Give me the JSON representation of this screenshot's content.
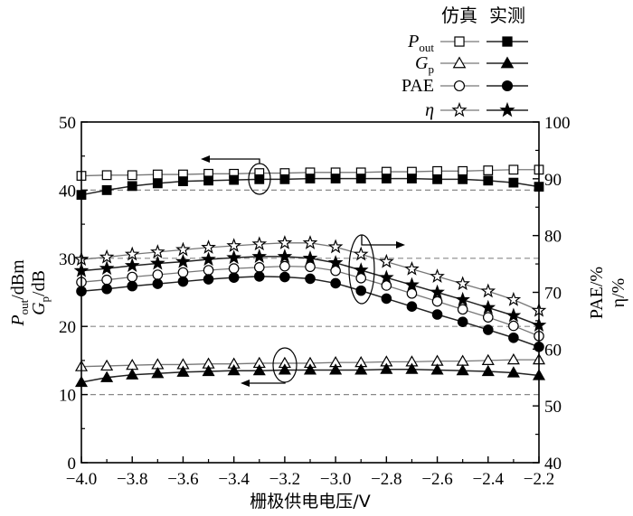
{
  "chart_data": {
    "type": "line",
    "xlabel": "栅极供电电压/V",
    "x_ticks": [
      "−4.0",
      "−3.8",
      "−3.6",
      "−3.4",
      "−3.2",
      "−3.0",
      "−2.8",
      "−2.6",
      "−2.4",
      "−2.2"
    ],
    "xlim": [
      -4.0,
      -2.2
    ],
    "left_axis": {
      "label_parts": [
        {
          "main": "P",
          "sub": "out",
          "rest": "/dBm"
        },
        {
          "main": "G",
          "sub": "p",
          "rest": "/dB"
        }
      ],
      "ylim": [
        0,
        50
      ],
      "ticks": [
        "0",
        "10",
        "20",
        "30",
        "40",
        "50"
      ]
    },
    "right_axis": {
      "label_lines": [
        "PAE/%",
        "η/%"
      ],
      "ylim": [
        40,
        100
      ],
      "ticks": [
        "40",
        "50",
        "60",
        "70",
        "80",
        "90",
        "100"
      ]
    },
    "legend": {
      "headers": [
        "仿真",
        "实测"
      ],
      "entries": [
        {
          "label_main": "P",
          "label_sub": "out",
          "marker": "square"
        },
        {
          "label_main": "G",
          "label_sub": "p",
          "marker": "triangle"
        },
        {
          "label_main": "PAE",
          "label_sub": "",
          "marker": "circle"
        },
        {
          "label_main": "η",
          "label_sub": "",
          "marker": "star"
        }
      ]
    },
    "x": [
      -4.0,
      -3.9,
      -3.8,
      -3.7,
      -3.6,
      -3.5,
      -3.4,
      -3.3,
      -3.2,
      -3.1,
      -3.0,
      -2.9,
      -2.8,
      -2.7,
      -2.6,
      -2.5,
      -2.4,
      -2.3,
      -2.2
    ],
    "series": [
      {
        "quantity": "Pout",
        "kind": "仿真",
        "axis": "left",
        "marker": "square",
        "filled": false,
        "values": [
          42.1,
          42.2,
          42.2,
          42.3,
          42.3,
          42.4,
          42.4,
          42.5,
          42.5,
          42.6,
          42.6,
          42.6,
          42.7,
          42.7,
          42.8,
          42.8,
          42.9,
          43.0,
          43.0
        ]
      },
      {
        "quantity": "Pout",
        "kind": "实测",
        "axis": "left",
        "marker": "square",
        "filled": true,
        "values": [
          39.3,
          40.0,
          40.6,
          41.0,
          41.3,
          41.4,
          41.5,
          41.6,
          41.6,
          41.7,
          41.7,
          41.7,
          41.7,
          41.7,
          41.6,
          41.6,
          41.4,
          41.1,
          40.5
        ]
      },
      {
        "quantity": "Gp",
        "kind": "仿真",
        "axis": "left",
        "marker": "triangle",
        "filled": false,
        "values": [
          14.1,
          14.2,
          14.3,
          14.4,
          14.4,
          14.5,
          14.5,
          14.6,
          14.6,
          14.6,
          14.7,
          14.7,
          14.8,
          14.8,
          14.9,
          14.9,
          15.0,
          15.1,
          15.1
        ]
      },
      {
        "quantity": "Gp",
        "kind": "实测",
        "axis": "left",
        "marker": "triangle",
        "filled": true,
        "values": [
          11.8,
          12.5,
          12.9,
          13.1,
          13.3,
          13.4,
          13.5,
          13.5,
          13.6,
          13.6,
          13.6,
          13.6,
          13.7,
          13.7,
          13.6,
          13.5,
          13.4,
          13.2,
          12.8
        ]
      },
      {
        "quantity": "PAE",
        "kind": "仿真",
        "axis": "right",
        "marker": "circle",
        "filled": false,
        "values": [
          71.8,
          72.2,
          72.7,
          73.1,
          73.5,
          73.9,
          74.2,
          74.4,
          74.6,
          74.5,
          73.8,
          72.5,
          71.2,
          69.8,
          68.4,
          67.0,
          65.6,
          64.1,
          62.3
        ]
      },
      {
        "quantity": "PAE",
        "kind": "实测",
        "axis": "right",
        "marker": "circle",
        "filled": true,
        "values": [
          70.2,
          70.6,
          71.1,
          71.5,
          71.9,
          72.3,
          72.6,
          72.8,
          72.7,
          72.4,
          71.6,
          70.3,
          68.9,
          67.5,
          66.1,
          64.8,
          63.4,
          62.0,
          60.4
        ]
      },
      {
        "quantity": "η",
        "kind": "仿真",
        "axis": "right",
        "marker": "star",
        "filled": false,
        "values": [
          75.8,
          76.2,
          76.7,
          77.1,
          77.5,
          77.9,
          78.2,
          78.5,
          78.7,
          78.7,
          78.0,
          76.7,
          75.4,
          74.1,
          72.8,
          71.5,
          70.2,
          68.7,
          66.8
        ]
      },
      {
        "quantity": "η",
        "kind": "实测",
        "axis": "right",
        "marker": "star",
        "filled": true,
        "values": [
          73.8,
          74.2,
          74.7,
          75.1,
          75.4,
          75.8,
          76.1,
          76.3,
          76.3,
          76.0,
          75.2,
          73.9,
          72.6,
          71.3,
          70.0,
          68.7,
          67.3,
          65.9,
          64.2
        ]
      }
    ],
    "reference_lines_left": [
      10,
      20,
      30,
      40
    ],
    "grid": false
  }
}
